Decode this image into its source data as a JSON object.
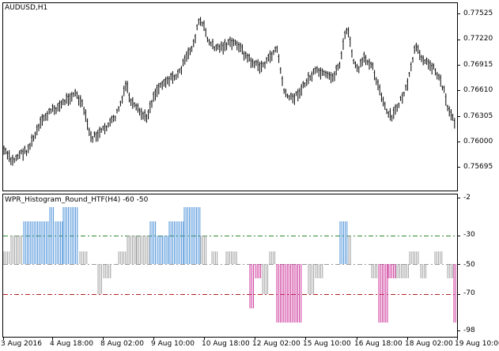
{
  "main_chart": {
    "title": "AUDUSD,H1",
    "price_labels": [
      "0.77525",
      "0.77220",
      "0.76915",
      "0.76610",
      "0.76305",
      "0.76000",
      "0.75695"
    ]
  },
  "indicator": {
    "title": "WPR_Histogram_Round_HTF(H4) -60 -50",
    "level_labels": [
      "-2",
      "-30",
      "-50",
      "-70",
      "-98"
    ],
    "colors": {
      "up": "#4a90d9",
      "neutral": "#a0a0a0",
      "down": "#cc3399",
      "upper_level_line": "#2e8b2e",
      "lower_level_line": "#b22222"
    }
  },
  "time_axis": {
    "labels": [
      "3 Aug 2016",
      "4 Aug 18:00",
      "8 Aug 02:00",
      "9 Aug 10:00",
      "10 Aug 18:00",
      "12 Aug 02:00",
      "15 Aug 10:00",
      "16 Aug 18:00",
      "18 Aug 02:00",
      "19 Aug 10:00"
    ]
  }
}
